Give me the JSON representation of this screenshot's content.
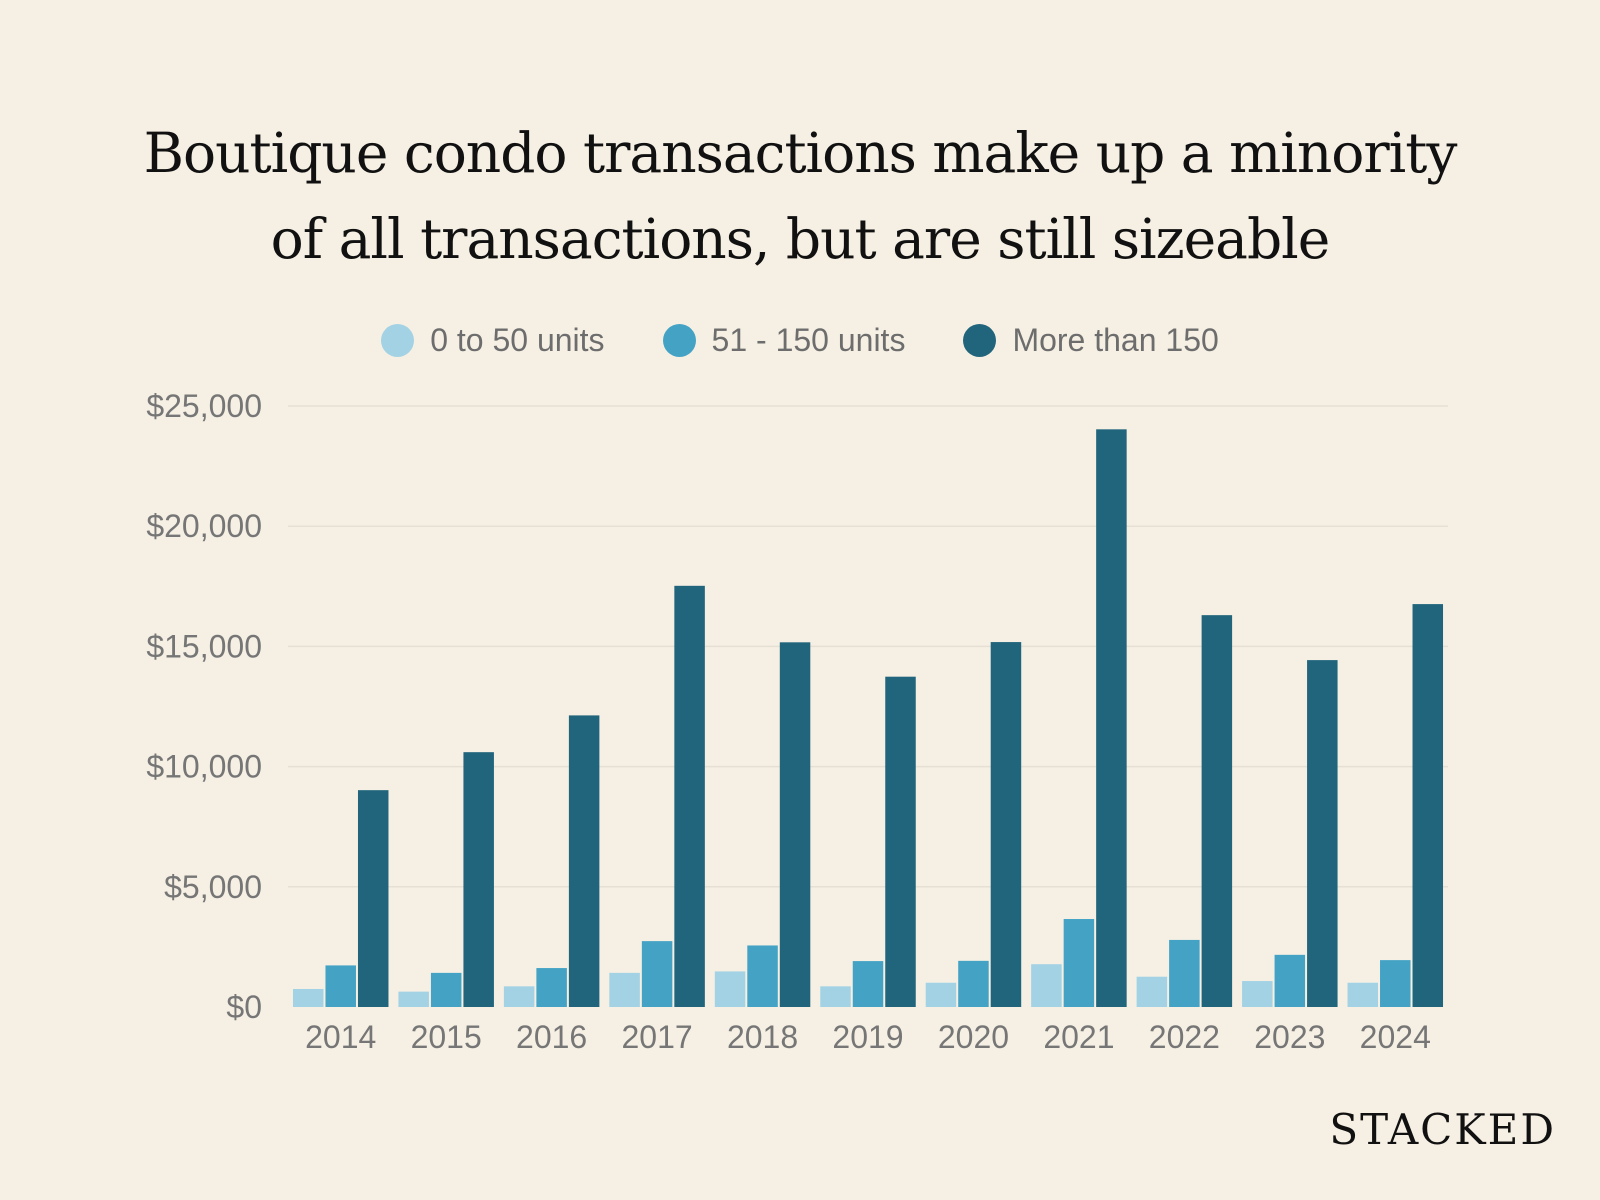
{
  "chart_data": {
    "type": "bar",
    "title_lines": [
      "Boutique condo transactions make up a minority",
      "of all transactions, but are still sizeable"
    ],
    "categories": [
      "2014",
      "2015",
      "2016",
      "2017",
      "2018",
      "2019",
      "2020",
      "2021",
      "2022",
      "2023",
      "2024"
    ],
    "series": [
      {
        "name": "0 to 50 units",
        "color": "#a2d2e3",
        "values": [
          750,
          640,
          860,
          1420,
          1480,
          860,
          1010,
          1780,
          1260,
          1080,
          1010
        ]
      },
      {
        "name": "51 - 150 units",
        "color": "#44a3c5",
        "values": [
          1730,
          1420,
          1620,
          2740,
          2560,
          1910,
          1920,
          3660,
          2790,
          2170,
          1950
        ]
      },
      {
        "name": "More than 150",
        "color": "#21657c",
        "values": [
          9020,
          10600,
          12130,
          17520,
          15170,
          13740,
          15180,
          24030,
          16300,
          14430,
          16760
        ]
      }
    ],
    "y_ticks": [
      0,
      5000,
      10000,
      15000,
      20000,
      25000
    ],
    "y_tick_labels": [
      "$0",
      "$5,000",
      "$10,000",
      "$15,000",
      "$20,000",
      "$25,000"
    ],
    "ylim": [
      0,
      25000
    ],
    "grid": true,
    "legend_position": "top-center"
  },
  "brand": "STACKED",
  "colors": {
    "background": "#f6f0e4",
    "gridline": "#e6e0d4"
  }
}
